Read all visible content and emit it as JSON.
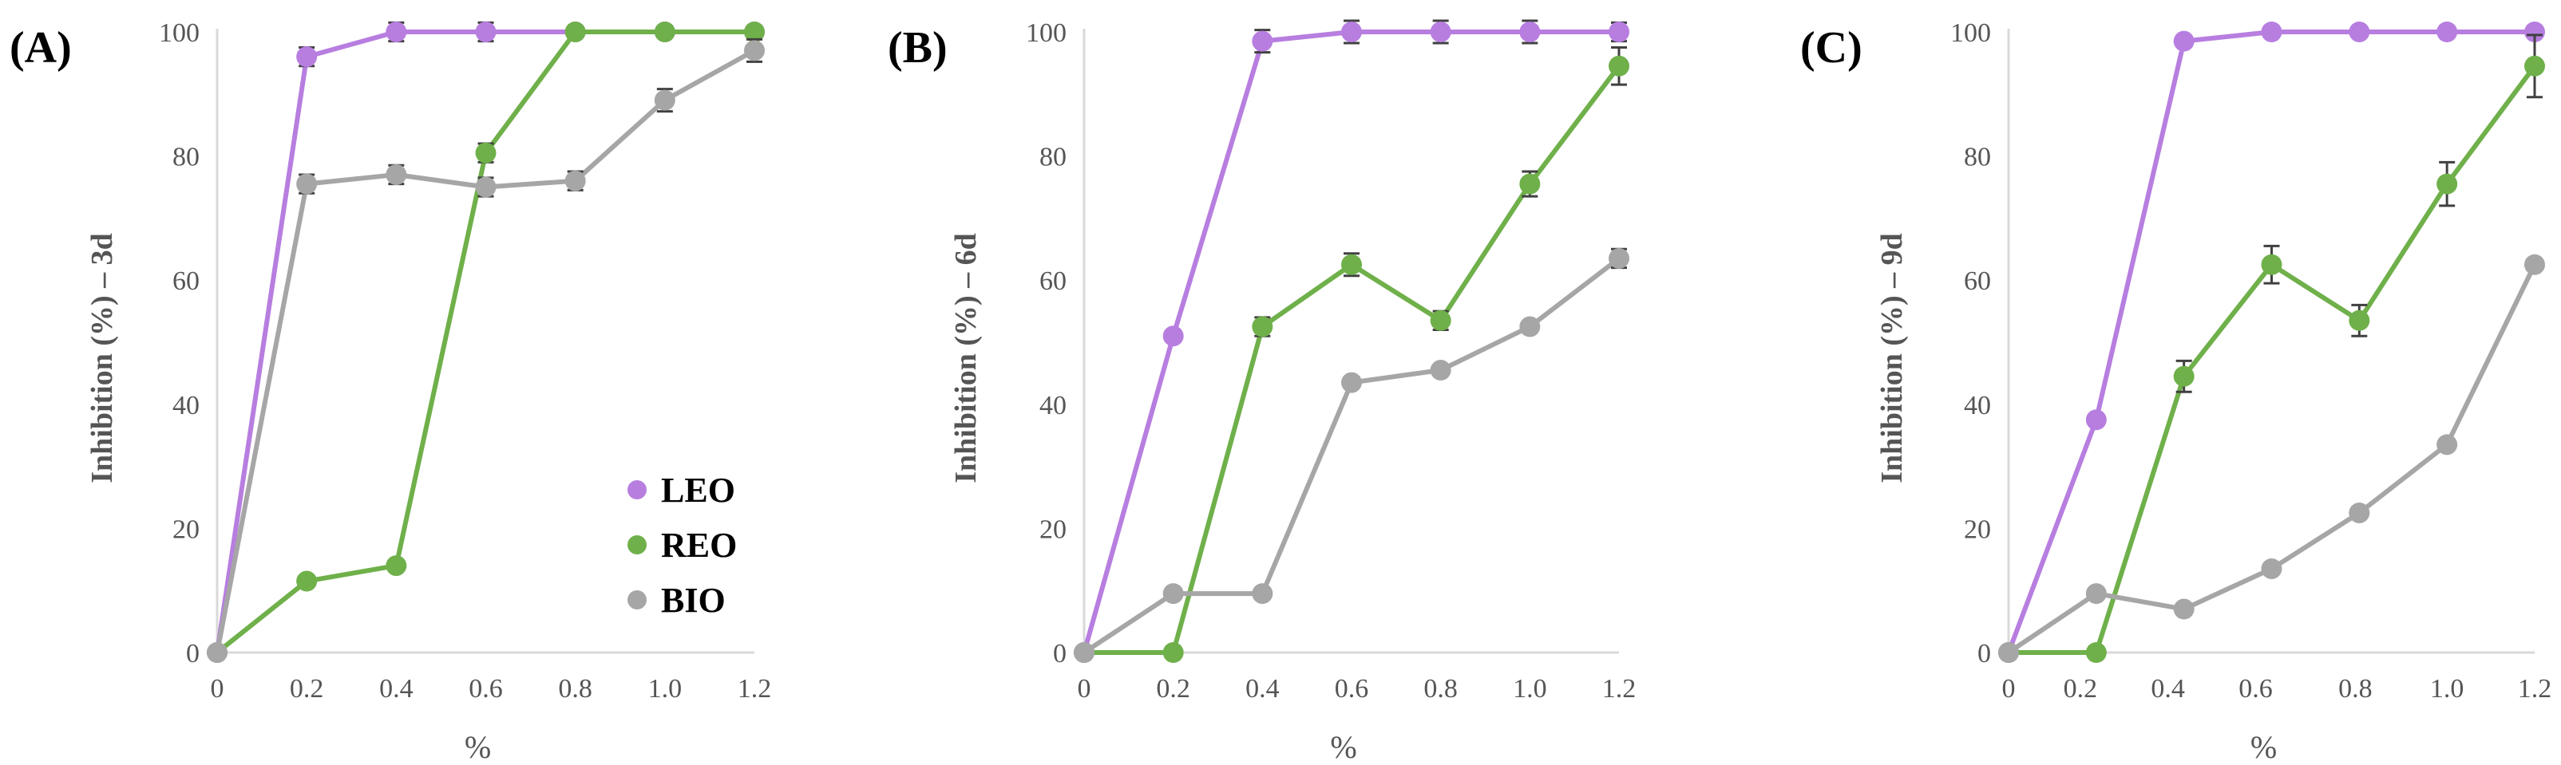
{
  "colors": {
    "LEO": "#b77ee0",
    "REO": "#6fb04a",
    "BIO": "#a6a6a6",
    "axis": "#d9d9d9",
    "errbar": "#404040"
  },
  "chart_data": [
    {
      "type": "line",
      "panel_label": "(A)",
      "ylabel": "Inhibition  (%) – 3d",
      "xlabel": "%",
      "ylim": [
        0,
        100
      ],
      "y_ticks": [
        "0",
        "20",
        "40",
        "60",
        "80",
        "100"
      ],
      "x_ticks": [
        "0",
        "0.2",
        "0.4",
        "0.6",
        "0.8",
        "1.0",
        "1.2"
      ],
      "x": [
        0,
        0.2,
        0.4,
        0.6,
        0.8,
        1.0,
        1.2
      ],
      "legend": [
        "LEO",
        "REO",
        "BIO"
      ],
      "series": [
        {
          "name": "LEO",
          "values": [
            0,
            96,
            100,
            100,
            100,
            100,
            100
          ],
          "errors": [
            0,
            1.5,
            1.5,
            1.5,
            0,
            0,
            0
          ]
        },
        {
          "name": "REO",
          "values": [
            0,
            11.5,
            14,
            80.5,
            100,
            100,
            100
          ],
          "errors": [
            0,
            0,
            0,
            1.5,
            0,
            0,
            0
          ]
        },
        {
          "name": "BIO",
          "values": [
            0,
            75.5,
            77,
            75,
            76,
            89,
            97
          ],
          "errors": [
            0,
            1.5,
            1.5,
            1.5,
            1.5,
            1.8,
            1.8
          ]
        }
      ]
    },
    {
      "type": "line",
      "panel_label": "(B)",
      "ylabel": "Inhibition  (%) – 6d",
      "xlabel": "%",
      "ylim": [
        0,
        100
      ],
      "y_ticks": [
        "0",
        "20",
        "40",
        "60",
        "80",
        "100"
      ],
      "x_ticks": [
        "0",
        "0.2",
        "0.4",
        "0.6",
        "0.8",
        "1.0",
        "1.2"
      ],
      "x": [
        0,
        0.2,
        0.4,
        0.6,
        0.8,
        1.0,
        1.2
      ],
      "series": [
        {
          "name": "LEO",
          "values": [
            0,
            51,
            98.5,
            100,
            100,
            100,
            100
          ],
          "errors": [
            0,
            0,
            1.8,
            1.8,
            1.8,
            1.8,
            1.5
          ]
        },
        {
          "name": "REO",
          "values": [
            0,
            0,
            52.5,
            62.5,
            53.5,
            75.5,
            94.5
          ],
          "errors": [
            0,
            0,
            1.5,
            1.8,
            1.5,
            2.0,
            3.0
          ]
        },
        {
          "name": "BIO",
          "values": [
            0,
            9.5,
            9.5,
            43.5,
            45.5,
            52.5,
            63.5
          ],
          "errors": [
            0,
            0,
            0,
            0,
            0,
            0,
            1.5
          ]
        }
      ]
    },
    {
      "type": "line",
      "panel_label": "(C)",
      "ylabel": "Inhibition  (%) – 9d",
      "xlabel": "%",
      "ylim": [
        0,
        100
      ],
      "y_ticks": [
        "0",
        "20",
        "40",
        "60",
        "80",
        "100"
      ],
      "x_ticks": [
        "0",
        "0.2",
        "0.4",
        "0.6",
        "0.8",
        "1.0",
        "1.2"
      ],
      "x": [
        0,
        0.2,
        0.4,
        0.6,
        0.8,
        1.0,
        1.2
      ],
      "series": [
        {
          "name": "LEO",
          "values": [
            0,
            37.5,
            98.5,
            100,
            100,
            100,
            100
          ],
          "errors": [
            0,
            0,
            0,
            0,
            0,
            0,
            0
          ]
        },
        {
          "name": "REO",
          "values": [
            0,
            0,
            44.5,
            62.5,
            53.5,
            75.5,
            94.5
          ],
          "errors": [
            0,
            0,
            2.5,
            3.0,
            2.5,
            3.5,
            5.0
          ]
        },
        {
          "name": "BIO",
          "values": [
            0,
            9.5,
            7,
            13.5,
            22.5,
            33.5,
            62.5
          ],
          "errors": [
            0,
            0,
            0,
            0,
            0,
            0,
            0
          ]
        }
      ]
    }
  ]
}
